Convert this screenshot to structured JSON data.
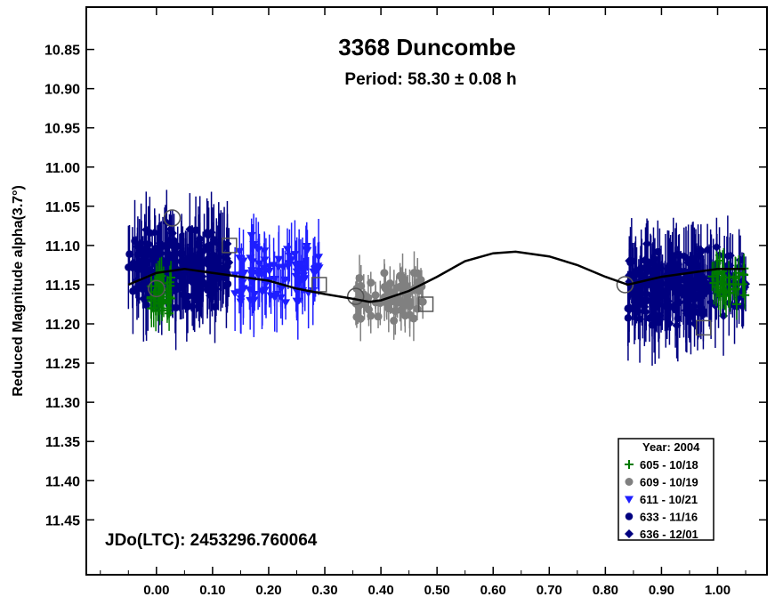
{
  "chart_data": {
    "type": "scatter",
    "title": "3368 Duncombe",
    "subtitle": "Period: 58.30 ± 0.08 h",
    "ylabel": "Reduced Magnitude alpha(3.7°)",
    "xlabel": "",
    "annotation": "JDo(LTC): 2453296.760064",
    "xlim": [
      -0.125,
      1.088
    ],
    "ylim": [
      11.52,
      10.796
    ],
    "y_inverted": true,
    "x_ticks": [
      "0.00",
      "0.10",
      "0.20",
      "0.30",
      "0.40",
      "0.50",
      "0.60",
      "0.70",
      "0.80",
      "0.90",
      "1.00"
    ],
    "y_ticks": [
      "10.85",
      "10.90",
      "10.95",
      "11.00",
      "11.05",
      "11.10",
      "11.15",
      "11.20",
      "11.25",
      "11.30",
      "11.35",
      "11.40",
      "11.45"
    ],
    "grid": false,
    "legend_position": "bottom-right",
    "legend_title": "Year: 2004",
    "colors": {
      "green": "#007a00",
      "gray": "#808080",
      "blue": "#1e1eff",
      "navy": "#000080"
    },
    "series": [
      {
        "name": "605 - 10/18",
        "marker": "plus",
        "color": "#007a00",
        "x_range": [
          -0.01,
          0.028
        ],
        "y_center": 11.16,
        "y_spread": 0.025,
        "err": 0.02,
        "n": 40,
        "x_range2": [
          0.99,
          1.05
        ],
        "y_center2": 11.145,
        "n2": 36
      },
      {
        "name": "609 - 10/19",
        "marker": "circle",
        "color": "#808080",
        "x_range": [
          0.355,
          0.475
        ],
        "y_center": 11.165,
        "y_spread": 0.025,
        "err": 0.022,
        "n": 75
      },
      {
        "name": "611 - 10/21",
        "marker": "triangle-down",
        "color": "#1e1eff",
        "x_range": [
          0.14,
          0.29
        ],
        "y_center": 11.135,
        "y_spread": 0.035,
        "err": 0.035,
        "n": 95
      },
      {
        "name": "633 - 11/16",
        "marker": "filled-circle",
        "color": "#000080",
        "x_range": [
          -0.05,
          0.13
        ],
        "y_center": 11.13,
        "y_spread": 0.04,
        "err": 0.04,
        "n": 120,
        "x_range2": [
          0.84,
          0.98
        ],
        "y_center2": 11.155,
        "n2": 110
      },
      {
        "name": "636 - 12/01",
        "marker": "diamond",
        "color": "#000080",
        "x_range": [
          -0.05,
          0.13
        ],
        "y_center": 11.125,
        "y_spread": 0.04,
        "err": 0.04,
        "n": 110,
        "x_range2": [
          0.84,
          1.05
        ],
        "y_center2": 11.15,
        "n2": 120
      }
    ],
    "fit_curve": [
      [
        -0.05,
        11.15
      ],
      [
        0.0,
        11.135
      ],
      [
        0.05,
        11.13
      ],
      [
        0.1,
        11.135
      ],
      [
        0.15,
        11.14
      ],
      [
        0.2,
        11.145
      ],
      [
        0.25,
        11.155
      ],
      [
        0.3,
        11.162
      ],
      [
        0.35,
        11.168
      ],
      [
        0.38,
        11.172
      ],
      [
        0.4,
        11.17
      ],
      [
        0.45,
        11.158
      ],
      [
        0.5,
        11.14
      ],
      [
        0.55,
        11.12
      ],
      [
        0.6,
        11.11
      ],
      [
        0.64,
        11.108
      ],
      [
        0.7,
        11.114
      ],
      [
        0.75,
        11.125
      ],
      [
        0.8,
        11.14
      ],
      [
        0.84,
        11.15
      ],
      [
        0.9,
        11.14
      ],
      [
        0.95,
        11.135
      ],
      [
        1.0,
        11.13
      ],
      [
        1.05,
        11.13
      ]
    ]
  }
}
